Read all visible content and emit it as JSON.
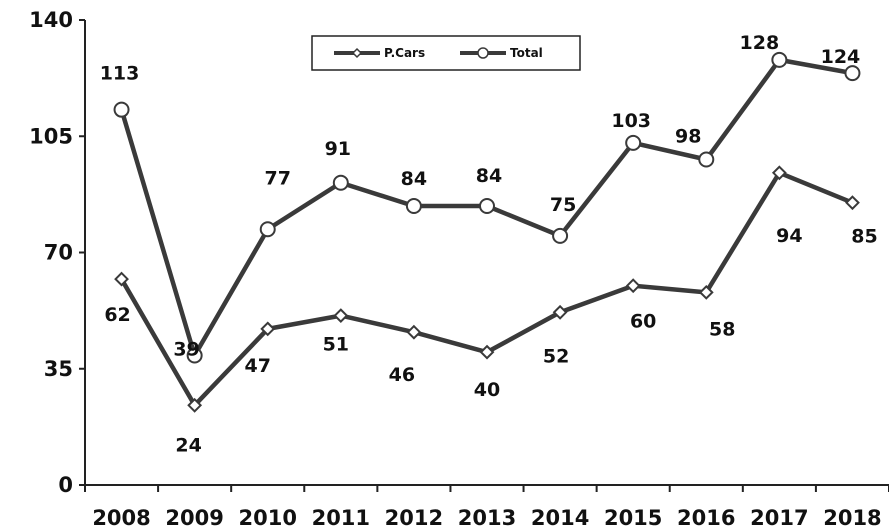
{
  "chart_data": {
    "type": "line",
    "title": "",
    "xlabel": "",
    "ylabel": "",
    "categories": [
      "2008",
      "2009",
      "2010",
      "2011",
      "2012",
      "2013",
      "2014",
      "2015",
      "2016",
      "2017",
      "2018"
    ],
    "ylim": [
      0,
      140
    ],
    "yticks": [
      0,
      35,
      70,
      105,
      140
    ],
    "grid": false,
    "legend": "top-center",
    "series": [
      {
        "name": "P.Cars",
        "marker": "diamond",
        "values": [
          62,
          24,
          47,
          51,
          46,
          40,
          52,
          60,
          58,
          94,
          85
        ]
      },
      {
        "name": "Total",
        "marker": "circle",
        "values": [
          113,
          39,
          77,
          91,
          84,
          84,
          75,
          103,
          98,
          128,
          124
        ]
      }
    ],
    "colors": {
      "line": "#3a3a3a",
      "marker_fill": "#ffffff"
    }
  }
}
